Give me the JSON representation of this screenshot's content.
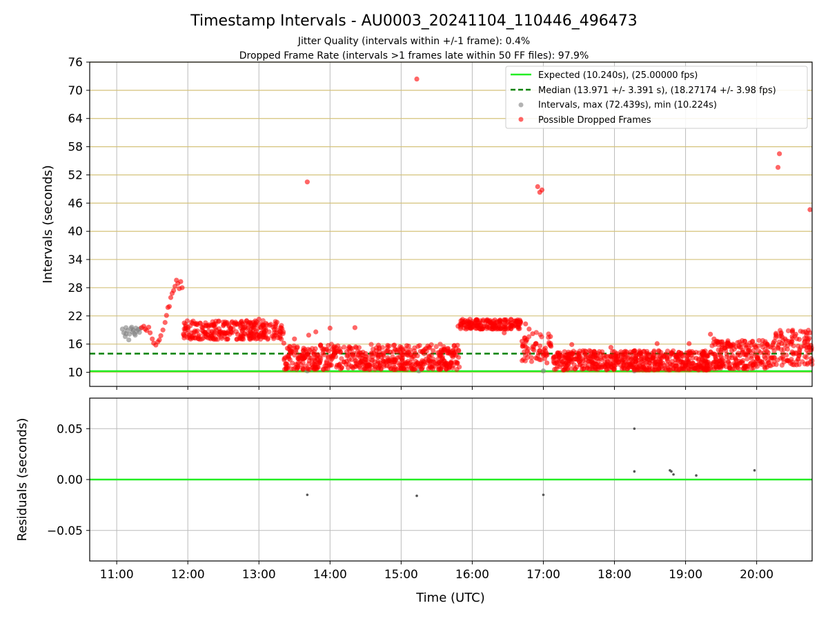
{
  "chart_data": {
    "type": "scatter",
    "title": "Timestamp Intervals - AU0003_20241104_110446_496473",
    "subtitle_1": "Jitter Quality (intervals within +/-1 frame): 0.4%",
    "subtitle_2": "Dropped Frame Rate (intervals >1 frames late within 50 FF files): 97.9%",
    "xlabel": "Time (UTC)",
    "x_ticks": [
      "11:00",
      "12:00",
      "13:00",
      "14:00",
      "15:00",
      "16:00",
      "17:00",
      "18:00",
      "19:00",
      "20:00"
    ],
    "xlim_hours": [
      10.62,
      20.78
    ],
    "colors": {
      "expected": "#22ee22",
      "median": "#008000",
      "intervals": "#808080",
      "dropped": "#ff0000",
      "grid_top": "#d4c27a",
      "grid": "#bbbbbb"
    },
    "top": {
      "ylabel": "Intervals (seconds)",
      "ylim": [
        7,
        76
      ],
      "y_ticks": [
        "10",
        "16",
        "22",
        "28",
        "34",
        "40",
        "46",
        "52",
        "58",
        "64",
        "70",
        "76"
      ],
      "expected": 10.24,
      "median": 13.971,
      "legend": {
        "placement": "top-right",
        "entries": [
          "Expected (10.240s), (25.00000 fps)",
          "Median (13.971 +/- 3.391 s), (18.27174 +/- 3.98 fps)",
          "Intervals, max (72.439s), min (10.224s)",
          "Possible Dropped Frames"
        ]
      },
      "gray_points": [
        [
          11.08,
          19.2
        ],
        [
          11.1,
          18.4
        ],
        [
          11.12,
          17.6
        ],
        [
          11.13,
          19.5
        ],
        [
          11.15,
          18.9
        ],
        [
          11.17,
          16.9
        ],
        [
          11.18,
          18.1
        ],
        [
          11.2,
          19.3
        ],
        [
          11.22,
          18.6
        ],
        [
          11.23,
          19.0
        ],
        [
          11.25,
          18.2
        ],
        [
          11.27,
          19.4
        ],
        [
          11.28,
          18.7
        ],
        [
          11.3,
          19.1
        ],
        [
          11.32,
          18.5
        ],
        [
          11.33,
          19.3
        ],
        [
          11.13,
          18.2
        ],
        [
          11.21,
          19.6
        ],
        [
          11.26,
          17.9
        ],
        [
          13.68,
          10.3
        ],
        [
          15.25,
          10.3
        ],
        [
          17.0,
          10.3
        ],
        [
          18.28,
          10.3
        ]
      ],
      "red_points": [
        [
          11.35,
          19.5
        ],
        [
          11.38,
          19.8
        ],
        [
          11.4,
          19.2
        ],
        [
          11.42,
          18.9
        ],
        [
          11.45,
          19.6
        ],
        [
          11.47,
          18.4
        ],
        [
          11.5,
          17.1
        ],
        [
          11.52,
          16.2
        ],
        [
          11.55,
          15.8
        ],
        [
          11.58,
          16.5
        ],
        [
          11.6,
          16.9
        ],
        [
          11.62,
          17.8
        ],
        [
          11.65,
          19.0
        ],
        [
          11.68,
          20.6
        ],
        [
          11.7,
          22.1
        ],
        [
          11.72,
          23.8
        ],
        [
          11.74,
          24.0
        ],
        [
          11.76,
          25.9
        ],
        [
          11.78,
          26.8
        ],
        [
          11.8,
          27.4
        ],
        [
          11.82,
          28.3
        ],
        [
          11.84,
          29.6
        ],
        [
          11.86,
          28.9
        ],
        [
          11.88,
          27.8
        ],
        [
          11.9,
          29.3
        ],
        [
          11.92,
          28.0
        ],
        [
          11.95,
          20.5
        ],
        [
          11.97,
          19.8
        ],
        [
          12.0,
          19.1
        ],
        [
          12.05,
          18.4
        ],
        [
          12.1,
          20.3
        ],
        [
          12.15,
          17.6
        ],
        [
          12.2,
          19.6
        ],
        [
          12.25,
          18.2
        ],
        [
          12.3,
          20.1
        ],
        [
          12.35,
          17.3
        ],
        [
          12.4,
          19.0
        ],
        [
          12.45,
          18.6
        ],
        [
          12.5,
          19.9
        ],
        [
          12.55,
          20.6
        ],
        [
          12.6,
          19.3
        ],
        [
          12.65,
          20.4
        ],
        [
          12.7,
          18.1
        ],
        [
          12.75,
          20.7
        ],
        [
          12.8,
          19.6
        ],
        [
          12.85,
          20.2
        ],
        [
          12.9,
          19.8
        ],
        [
          12.95,
          20.5
        ],
        [
          13.0,
          21.3
        ],
        [
          13.05,
          20.1
        ],
        [
          13.1,
          20.4
        ],
        [
          13.15,
          20.0
        ],
        [
          13.2,
          19.6
        ],
        [
          13.25,
          19.0
        ],
        [
          13.3,
          17.6
        ],
        [
          13.35,
          16.2
        ],
        [
          13.4,
          15.1
        ],
        [
          13.45,
          14.0
        ],
        [
          13.5,
          17.1
        ],
        [
          13.55,
          12.9
        ],
        [
          13.6,
          13.6
        ],
        [
          13.65,
          13.3
        ],
        [
          13.7,
          17.9
        ],
        [
          13.75,
          11.6
        ],
        [
          13.8,
          18.6
        ],
        [
          13.85,
          12.3
        ],
        [
          13.9,
          14.1
        ],
        [
          13.95,
          12.0
        ],
        [
          14.0,
          19.4
        ],
        [
          14.05,
          13.6
        ],
        [
          14.1,
          11.5
        ],
        [
          14.15,
          14.3
        ],
        [
          14.2,
          12.2
        ],
        [
          14.25,
          13.6
        ],
        [
          14.3,
          11.3
        ],
        [
          14.35,
          19.5
        ],
        [
          14.4,
          13.8
        ],
        [
          14.45,
          12.4
        ],
        [
          14.5,
          14.0
        ],
        [
          14.55,
          11.6
        ],
        [
          14.6,
          13.3
        ],
        [
          14.65,
          14.6
        ],
        [
          14.7,
          12.0
        ],
        [
          14.75,
          13.8
        ],
        [
          14.8,
          11.4
        ],
        [
          14.85,
          14.3
        ],
        [
          14.9,
          12.6
        ],
        [
          14.95,
          13.1
        ],
        [
          15.0,
          14.2
        ],
        [
          15.05,
          11.8
        ],
        [
          15.1,
          13.6
        ],
        [
          15.15,
          12.9
        ],
        [
          15.2,
          14.0
        ],
        [
          15.25,
          11.3
        ],
        [
          15.3,
          14.4
        ],
        [
          15.35,
          12.8
        ],
        [
          15.4,
          13.3
        ],
        [
          15.45,
          14.6
        ],
        [
          15.5,
          11.8
        ],
        [
          15.55,
          13.6
        ],
        [
          15.6,
          12.4
        ],
        [
          15.65,
          14.1
        ],
        [
          15.7,
          12.0
        ],
        [
          15.75,
          13.8
        ],
        [
          15.8,
          19.8
        ],
        [
          15.85,
          20.4
        ],
        [
          15.9,
          21.0
        ],
        [
          15.95,
          20.3
        ],
        [
          16.0,
          20.8
        ],
        [
          16.05,
          21.1
        ],
        [
          16.1,
          20.5
        ],
        [
          16.15,
          20.9
        ],
        [
          16.2,
          21.0
        ],
        [
          16.25,
          20.6
        ],
        [
          16.3,
          19.6
        ],
        [
          16.35,
          20.8
        ],
        [
          16.4,
          20.2
        ],
        [
          16.45,
          18.4
        ],
        [
          16.5,
          20.6
        ],
        [
          16.55,
          19.8
        ],
        [
          16.6,
          20.2
        ],
        [
          16.65,
          19.6
        ],
        [
          16.7,
          16.6
        ],
        [
          16.75,
          20.3
        ],
        [
          16.8,
          19.2
        ],
        [
          16.85,
          18.2
        ],
        [
          16.9,
          16.1
        ],
        [
          16.95,
          14.6
        ],
        [
          17.0,
          13.6
        ],
        [
          17.05,
          12.0
        ],
        [
          17.1,
          17.6
        ],
        [
          17.15,
          13.3
        ],
        [
          17.2,
          14.1
        ],
        [
          17.25,
          12.4
        ],
        [
          17.3,
          13.6
        ],
        [
          17.35,
          11.6
        ],
        [
          17.4,
          15.9
        ],
        [
          17.45,
          12.8
        ],
        [
          17.5,
          14.0
        ],
        [
          17.55,
          11.3
        ],
        [
          17.6,
          13.3
        ],
        [
          17.65,
          14.6
        ],
        [
          17.7,
          12.0
        ],
        [
          17.75,
          13.0
        ],
        [
          17.8,
          11.6
        ],
        [
          17.85,
          13.6
        ],
        [
          17.9,
          12.3
        ],
        [
          17.95,
          15.3
        ],
        [
          18.0,
          11.3
        ],
        [
          18.05,
          13.3
        ],
        [
          18.1,
          12.6
        ],
        [
          18.15,
          14.0
        ],
        [
          18.2,
          11.0
        ],
        [
          18.25,
          13.1
        ],
        [
          18.3,
          12.3
        ],
        [
          18.35,
          13.8
        ],
        [
          18.4,
          11.6
        ],
        [
          18.45,
          13.0
        ],
        [
          18.5,
          12.0
        ],
        [
          18.55,
          13.6
        ],
        [
          18.6,
          16.1
        ],
        [
          18.65,
          11.8
        ],
        [
          18.7,
          13.3
        ],
        [
          18.75,
          12.4
        ],
        [
          18.8,
          14.0
        ],
        [
          18.85,
          11.3
        ],
        [
          18.9,
          12.8
        ],
        [
          18.95,
          13.6
        ],
        [
          19.0,
          11.6
        ],
        [
          19.05,
          16.1
        ],
        [
          19.1,
          12.0
        ],
        [
          19.15,
          13.0
        ],
        [
          19.2,
          11.3
        ],
        [
          19.25,
          12.4
        ],
        [
          19.3,
          13.6
        ],
        [
          19.35,
          18.1
        ],
        [
          19.4,
          17.1
        ],
        [
          19.45,
          16.6
        ],
        [
          19.5,
          14.3
        ],
        [
          19.55,
          15.1
        ],
        [
          19.6,
          12.3
        ],
        [
          19.65,
          14.6
        ],
        [
          19.7,
          13.0
        ],
        [
          19.75,
          15.6
        ],
        [
          19.8,
          12.0
        ],
        [
          19.85,
          13.8
        ],
        [
          19.9,
          14.6
        ],
        [
          19.95,
          11.6
        ],
        [
          20.0,
          13.3
        ],
        [
          20.05,
          12.4
        ],
        [
          20.1,
          14.1
        ],
        [
          20.15,
          15.9
        ],
        [
          20.2,
          13.0
        ],
        [
          20.25,
          16.6
        ],
        [
          20.3,
          15.1
        ],
        [
          20.35,
          16.1
        ],
        [
          20.4,
          17.1
        ],
        [
          20.45,
          16.6
        ],
        [
          20.5,
          17.6
        ],
        [
          20.55,
          18.1
        ],
        [
          20.6,
          17.0
        ],
        [
          20.65,
          18.6
        ],
        [
          20.7,
          17.9
        ],
        [
          20.75,
          18.4
        ],
        [
          13.68,
          50.5
        ],
        [
          15.22,
          72.4
        ],
        [
          16.92,
          49.5
        ],
        [
          16.95,
          48.3
        ],
        [
          16.98,
          48.8
        ],
        [
          20.3,
          53.6
        ],
        [
          20.32,
          56.5
        ],
        [
          20.75,
          44.6
        ]
      ],
      "bands": [
        {
          "start": 11.93,
          "end": 13.35,
          "lo": 17.0,
          "hi": 21.0,
          "n": 260
        },
        {
          "start": 13.35,
          "end": 15.82,
          "lo": 10.6,
          "hi": 16.0,
          "n": 520
        },
        {
          "start": 15.82,
          "end": 16.7,
          "lo": 19.2,
          "hi": 21.3,
          "n": 160
        },
        {
          "start": 16.7,
          "end": 17.15,
          "lo": 12.0,
          "hi": 18.5,
          "n": 60
        },
        {
          "start": 17.15,
          "end": 19.35,
          "lo": 10.5,
          "hi": 14.6,
          "n": 520
        },
        {
          "start": 19.35,
          "end": 20.2,
          "lo": 10.7,
          "hi": 16.8,
          "n": 200
        },
        {
          "start": 20.2,
          "end": 20.78,
          "lo": 11.5,
          "hi": 19.0,
          "n": 110
        }
      ]
    },
    "bottom": {
      "ylabel": "Residuals (seconds)",
      "ylim": [
        -0.08,
        0.08
      ],
      "y_ticks": [
        "0.05",
        "0.00",
        "−0.05"
      ],
      "points": [
        [
          13.68,
          -0.015
        ],
        [
          15.22,
          -0.016
        ],
        [
          17.0,
          -0.015
        ],
        [
          18.28,
          0.05
        ],
        [
          18.28,
          0.008
        ],
        [
          18.78,
          0.009
        ],
        [
          18.8,
          0.008
        ],
        [
          18.83,
          0.005
        ],
        [
          19.15,
          0.004
        ],
        [
          19.97,
          0.009
        ]
      ]
    }
  }
}
